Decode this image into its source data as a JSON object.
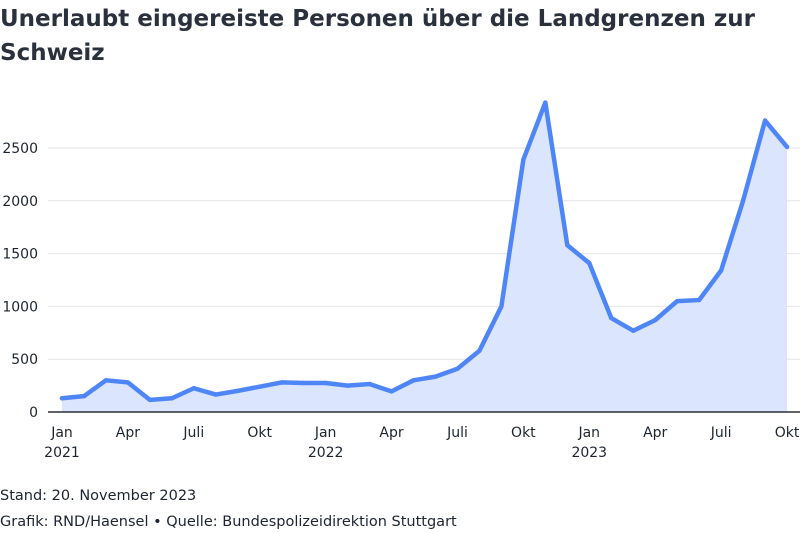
{
  "chart_data": {
    "type": "area",
    "title": "Unerlaubt eingereiste Personen über die Landgrenzen zur Schweiz",
    "xlabel": "",
    "ylabel": "",
    "ylim": [
      0,
      2900
    ],
    "yticks": [
      0,
      500,
      1000,
      1500,
      2000,
      2500
    ],
    "grid": true,
    "x_tick_labels": [
      {
        "month_index": 0,
        "label": "Jan",
        "year": "2021"
      },
      {
        "month_index": 3,
        "label": "Apr",
        "year": ""
      },
      {
        "month_index": 6,
        "label": "Juli",
        "year": ""
      },
      {
        "month_index": 9,
        "label": "Okt",
        "year": ""
      },
      {
        "month_index": 12,
        "label": "Jan",
        "year": "2022"
      },
      {
        "month_index": 15,
        "label": "Apr",
        "year": ""
      },
      {
        "month_index": 18,
        "label": "Juli",
        "year": ""
      },
      {
        "month_index": 21,
        "label": "Okt",
        "year": ""
      },
      {
        "month_index": 24,
        "label": "Jan",
        "year": "2023"
      },
      {
        "month_index": 27,
        "label": "Apr",
        "year": ""
      },
      {
        "month_index": 30,
        "label": "Juli",
        "year": ""
      },
      {
        "month_index": 33,
        "label": "Okt",
        "year": ""
      }
    ],
    "x": [
      "2021-01",
      "2021-02",
      "2021-03",
      "2021-04",
      "2021-05",
      "2021-06",
      "2021-07",
      "2021-08",
      "2021-09",
      "2021-10",
      "2021-11",
      "2021-12",
      "2022-01",
      "2022-02",
      "2022-03",
      "2022-04",
      "2022-05",
      "2022-06",
      "2022-07",
      "2022-08",
      "2022-09",
      "2022-10",
      "2022-11",
      "2022-12",
      "2023-01",
      "2023-02",
      "2023-03",
      "2023-04",
      "2023-05",
      "2023-06",
      "2023-07",
      "2023-08",
      "2023-09",
      "2023-10"
    ],
    "series": [
      {
        "values": [
          130,
          150,
          300,
          280,
          115,
          130,
          225,
          165,
          200,
          240,
          280,
          275,
          275,
          250,
          265,
          195,
          300,
          335,
          410,
          580,
          1000,
          2390,
          2930,
          1580,
          1410,
          890,
          770,
          870,
          1050,
          1060,
          1340,
          2000,
          2760,
          2510
        ],
        "color": "#4f86f7",
        "fill": "#dbe5fd"
      }
    ]
  },
  "footer": {
    "stand": "Stand: 20. November 2023",
    "credit": "Grafik: RND/Haensel • Quelle: Bundespolizeidirektion Stuttgart"
  }
}
